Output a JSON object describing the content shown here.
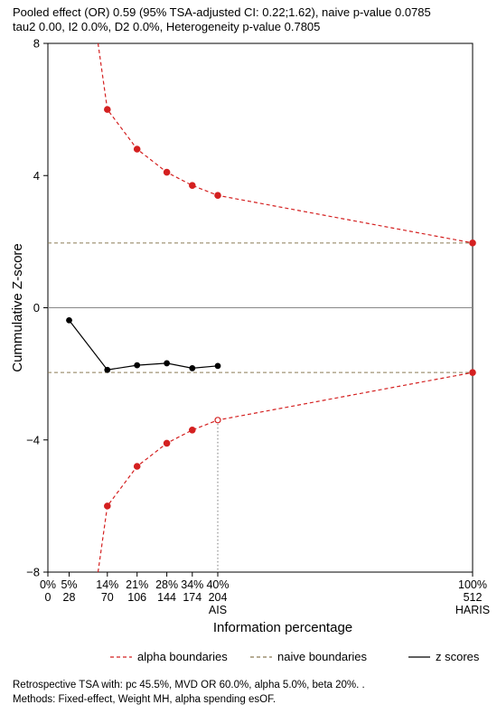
{
  "header": {
    "line1": "Pooled effect (OR) 0.59 (95% TSA-adjusted CI: 0.22;1.62), naive p-value 0.0785",
    "line2": "tau2 0.00, I2 0.0%, D2 0.0%, Heterogeneity p-value 0.7805"
  },
  "footer": {
    "line1": "Retrospective TSA with: pc 45.5%, MVD OR 60.0%, alpha 5.0%, beta 20%. .",
    "line2": "Methods: Fixed-effect, Weight MH, alpha spending esOF."
  },
  "chart_data": {
    "type": "line",
    "title": "",
    "xlabel": "Information percentage",
    "ylabel": "Cummulative Z-score",
    "xlim": [
      0,
      100
    ],
    "ylim": [
      -8,
      8
    ],
    "yticks": [
      -8,
      -4,
      0,
      4,
      8
    ],
    "yticklabels": [
      "−8",
      "−4",
      "0",
      "4",
      "8"
    ],
    "xticks": [
      {
        "x": 0,
        "pct": "0%",
        "n": "0"
      },
      {
        "x": 5,
        "pct": "5%",
        "n": "28"
      },
      {
        "x": 14,
        "pct": "14%",
        "n": "70"
      },
      {
        "x": 21,
        "pct": "21%",
        "n": "106"
      },
      {
        "x": 28,
        "pct": "28%",
        "n": "144"
      },
      {
        "x": 34,
        "pct": "34%",
        "n": "174"
      },
      {
        "x": 40,
        "pct": "40%",
        "n": "204",
        "sub": "AIS"
      },
      {
        "x": 100,
        "pct": "100%",
        "n": "512",
        "sub": "HARIS"
      }
    ],
    "z_scores": {
      "x": [
        5,
        14,
        21,
        28,
        34,
        40
      ],
      "y": [
        -0.38,
        -1.88,
        -1.74,
        -1.68,
        -1.83,
        -1.76
      ]
    },
    "alpha_upper": {
      "x": [
        11.8,
        14,
        21,
        28,
        34,
        40,
        100
      ],
      "y": [
        8,
        6,
        4.8,
        4.1,
        3.7,
        3.4,
        1.96
      ],
      "markers": [
        14,
        21,
        28,
        34,
        40,
        100
      ]
    },
    "alpha_lower": {
      "x": [
        11.8,
        14,
        21,
        28,
        34,
        40,
        100
      ],
      "y": [
        -8,
        -6,
        -4.8,
        -4.1,
        -3.7,
        -3.4,
        -1.96
      ],
      "markers": [
        14,
        21,
        28,
        34,
        40,
        100
      ]
    },
    "naive_boundaries": [
      1.96,
      -1.96
    ],
    "ais_x": 40,
    "legend": {
      "position": "bottom",
      "items": [
        {
          "label": "alpha boundaries",
          "style": "red-dashed"
        },
        {
          "label": "naive boundaries",
          "style": "olive-dashed"
        },
        {
          "label": "z scores",
          "style": "black-solid"
        }
      ]
    },
    "colors": {
      "alpha": "#d42020",
      "naive": "#8b7b55",
      "z": "#000000",
      "axis": "#555555"
    }
  }
}
